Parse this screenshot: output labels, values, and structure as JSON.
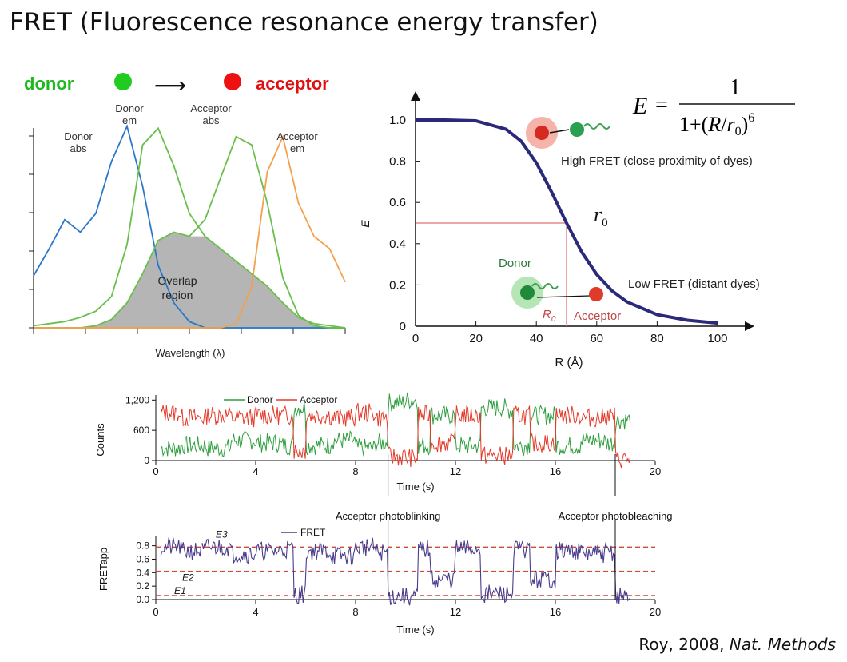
{
  "page": {
    "title": "FRET (Fluorescence resonance energy transfer)",
    "citation_text": "Roy, 2008, ",
    "citation_journal": "Nat. Methods"
  },
  "legend_top": {
    "donor_label": "donor",
    "acceptor_label": "acceptor",
    "donor_color": "#1fcc1f",
    "acceptor_color": "#ee1111",
    "arrow_glyph": "⟶"
  },
  "equation": {
    "lhs": "E",
    "numerator": "1",
    "denominator": "1+(R/r0)^6"
  },
  "colors": {
    "donor_abs": "#2a77c9",
    "donor_em": "#6abf4b",
    "acceptor_abs": "#6abf4b",
    "acceptor_em": "#f5a04a",
    "overlap": "#a8a8a8",
    "curve": "#2b2a7a",
    "r0_line": "#e28a8a",
    "trace_green": "#2e9e3e",
    "trace_red": "#e33a2a",
    "fret_trace": "#4a3c8c",
    "dashed": "#d04a3a"
  },
  "chart_data": [
    {
      "type": "line",
      "panel": "spectra",
      "xlabel": "Wavelength (λ)",
      "ylabel": "",
      "curve_labels": [
        {
          "name": "Donor abs",
          "text1": "Donor",
          "text2": "abs"
        },
        {
          "name": "Donor em",
          "text1": "Donor",
          "text2": "em"
        },
        {
          "name": "Acceptor abs",
          "text1": "Acceptor",
          "text2": "abs"
        },
        {
          "name": "Acceptor em",
          "text1": "Acceptor",
          "text2": "em"
        }
      ],
      "overlap_label": [
        "Overlap",
        "region"
      ],
      "x": [
        0,
        5,
        10,
        15,
        20,
        25,
        30,
        35,
        40,
        45,
        50,
        55,
        60,
        65,
        70,
        75,
        80,
        85,
        90,
        95,
        100
      ],
      "series": [
        {
          "name": "Donor abs",
          "values": [
            0.25,
            0.38,
            0.52,
            0.46,
            0.55,
            0.8,
            0.97,
            0.68,
            0.3,
            0.12,
            0.03,
            0,
            0,
            0,
            0,
            0,
            0,
            0,
            0,
            0,
            0
          ]
        },
        {
          "name": "Donor em",
          "values": [
            0.01,
            0.02,
            0.03,
            0.05,
            0.08,
            0.15,
            0.4,
            0.88,
            0.96,
            0.78,
            0.55,
            0.44,
            0.38,
            0.32,
            0.26,
            0.2,
            0.12,
            0.05,
            0.02,
            0.01,
            0
          ]
        },
        {
          "name": "Acceptor abs",
          "values": [
            0,
            0,
            0,
            0,
            0.01,
            0.04,
            0.12,
            0.26,
            0.42,
            0.46,
            0.44,
            0.52,
            0.72,
            0.92,
            0.88,
            0.6,
            0.24,
            0.06,
            0.01,
            0,
            0
          ]
        },
        {
          "name": "Acceptor em",
          "values": [
            0,
            0,
            0,
            0,
            0,
            0,
            0,
            0,
            0,
            0,
            0,
            0,
            0,
            0.02,
            0.2,
            0.75,
            0.92,
            0.6,
            0.44,
            0.38,
            0.22
          ]
        }
      ]
    },
    {
      "type": "line",
      "panel": "efficiency",
      "xlabel": "R (Å)",
      "ylabel": "E",
      "xlim": [
        0,
        100
      ],
      "ylim": [
        0,
        1.0
      ],
      "x_ticks": [
        "0",
        "20",
        "40",
        "60",
        "80",
        "100"
      ],
      "y_ticks": [
        "0",
        "0.2",
        "0.4",
        "0.6",
        "0.8",
        "1.0"
      ],
      "r0": 50,
      "r0_label": "r0",
      "r0_axis_label": "R0",
      "annotations": {
        "high": "High FRET (close proximity of dyes)",
        "low": "Low FRET (distant dyes)",
        "donor": "Donor",
        "acceptor": "Acceptor"
      },
      "x": [
        0,
        10,
        20,
        30,
        35,
        40,
        45,
        50,
        55,
        60,
        65,
        70,
        80,
        90,
        100
      ],
      "series": [
        {
          "name": "E",
          "values": [
            1.0,
            1.0,
            0.996,
            0.955,
            0.897,
            0.792,
            0.652,
            0.5,
            0.36,
            0.251,
            0.172,
            0.118,
            0.056,
            0.029,
            0.015
          ]
        }
      ]
    },
    {
      "type": "line",
      "panel": "counts",
      "xlabel": "Time (s)",
      "ylabel": "Counts",
      "xlim": [
        0,
        20
      ],
      "ylim": [
        0,
        1300
      ],
      "x_ticks": [
        "0",
        "4",
        "8",
        "12",
        "16",
        "20"
      ],
      "y_ticks": [
        "0",
        "600",
        "1,200"
      ],
      "legend": [
        "Donor",
        "Acceptor"
      ],
      "events": [
        {
          "label": "Acceptor photoblinking",
          "t": 9.3
        },
        {
          "label": "Acceptor photobleaching",
          "t": 18.4
        }
      ],
      "x": [
        0.2,
        1.0,
        2.0,
        3.0,
        4.0,
        5.0,
        5.5,
        6.0,
        7.0,
        8.0,
        8.8,
        9.3,
        10.0,
        10.5,
        11.0,
        12.0,
        13.0,
        14.0,
        14.3,
        15.0,
        16.0,
        17.0,
        18.0,
        18.4,
        19.0
      ],
      "series": [
        {
          "name": "Donor",
          "values": [
            250,
            300,
            250,
            400,
            350,
            300,
            1050,
            300,
            400,
            250,
            350,
            1150,
            1200,
            300,
            900,
            300,
            1050,
            1000,
            300,
            900,
            300,
            400,
            350,
            800,
            900
          ]
        },
        {
          "name": "Acceptor",
          "values": [
            950,
            850,
            900,
            850,
            900,
            900,
            200,
            900,
            850,
            950,
            850,
            80,
            60,
            900,
            350,
            900,
            100,
            100,
            900,
            350,
            900,
            850,
            900,
            30,
            20
          ]
        }
      ]
    },
    {
      "type": "line",
      "panel": "fret",
      "xlabel": "Time (s)",
      "ylabel": "FRETapp",
      "xlim": [
        0,
        20
      ],
      "ylim": [
        0,
        0.95
      ],
      "x_ticks": [
        "0",
        "4",
        "8",
        "12",
        "16",
        "20"
      ],
      "y_ticks": [
        "0.0",
        "0.2",
        "0.4",
        "0.6",
        "0.8"
      ],
      "legend": [
        "FRET"
      ],
      "levels": [
        {
          "label": "E3",
          "value": 0.78
        },
        {
          "label": "E2",
          "value": 0.42
        },
        {
          "label": "E1",
          "value": 0.06
        }
      ],
      "x": [
        0.2,
        1.0,
        2.0,
        3.0,
        4.0,
        5.0,
        5.5,
        6.0,
        7.0,
        8.0,
        8.8,
        9.3,
        10.0,
        10.5,
        11.0,
        12.0,
        13.0,
        14.0,
        14.3,
        15.0,
        16.0,
        17.0,
        18.0,
        18.4,
        19.0
      ],
      "series": [
        {
          "name": "FRET",
          "values": [
            0.78,
            0.72,
            0.78,
            0.68,
            0.72,
            0.75,
            0.08,
            0.72,
            0.65,
            0.78,
            0.7,
            0.05,
            0.04,
            0.75,
            0.3,
            0.75,
            0.08,
            0.08,
            0.75,
            0.3,
            0.72,
            0.68,
            0.7,
            0.05,
            0.03
          ]
        }
      ]
    }
  ]
}
